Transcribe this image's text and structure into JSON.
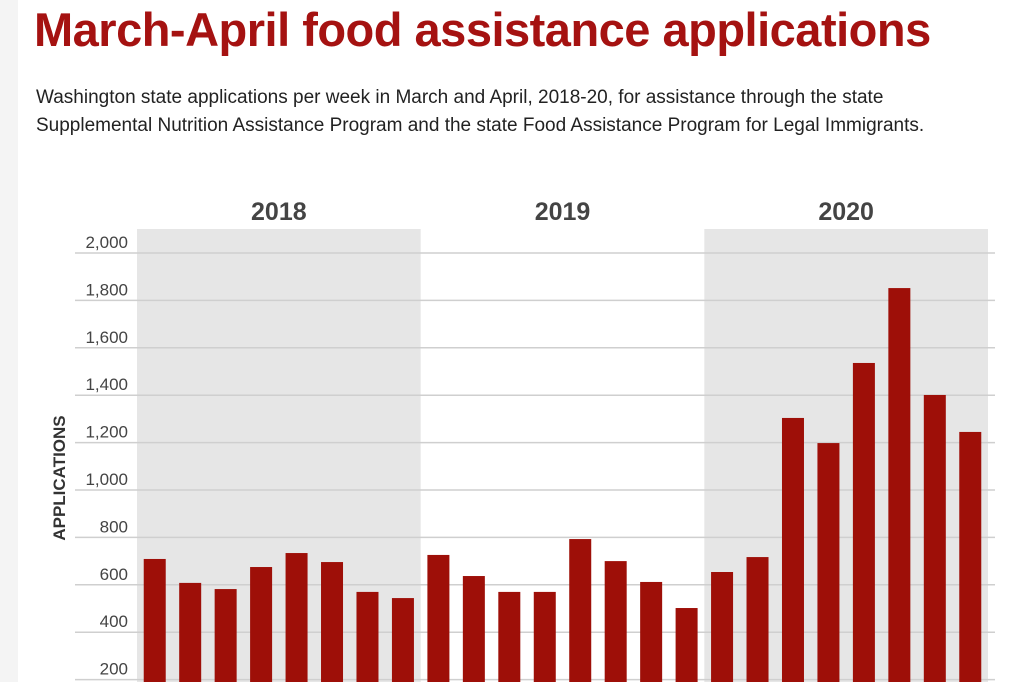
{
  "title": "March-April food assistance applications",
  "subtitle": "Washington state applications per week in March and April, 2018-20, for assistance through the state Supplemental Nutrition Assistance Program and the state Food Assistance Program for Legal Immigrants.",
  "colors": {
    "bar": "#9e0f08",
    "title": "#a51211",
    "band": "#e6e6e6",
    "grid": "#cfcfcf"
  },
  "chart_data": {
    "type": "bar",
    "title": "March-April food assistance applications",
    "xlabel": "",
    "ylabel": "APPLICATIONS",
    "ylim": [
      0,
      2000
    ],
    "yticks": [
      200,
      400,
      600,
      800,
      1000,
      1200,
      1400,
      1600,
      1800,
      2000
    ],
    "ytick_labels": [
      "200",
      "400",
      "600",
      "800",
      "1,000",
      "1,200",
      "1,400",
      "1,600",
      "1,800",
      "2,000"
    ],
    "grid": true,
    "groups": [
      {
        "name": "2018",
        "shaded": true,
        "values": [
          709,
          608,
          582,
          675,
          734,
          696,
          570,
          544
        ]
      },
      {
        "name": "2019",
        "shaded": false,
        "values": [
          726,
          637,
          570,
          570,
          793,
          700,
          612,
          502
        ]
      },
      {
        "name": "2020",
        "shaded": true,
        "values": [
          654,
          717,
          1304,
          1198,
          1536,
          1852,
          1401,
          1245
        ]
      }
    ]
  }
}
